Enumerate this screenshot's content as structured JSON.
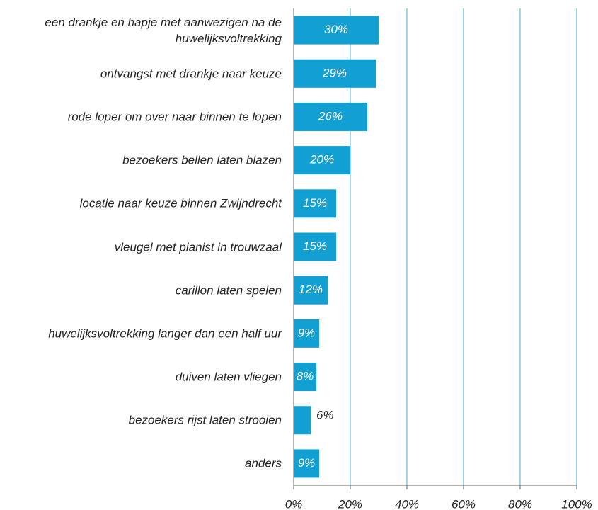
{
  "chart_data": {
    "type": "bar",
    "orientation": "horizontal",
    "categories": [
      "een drankje en hapje met aanwezigen na de huwelijksvoltrekking",
      "ontvangst met drankje naar keuze",
      "rode loper om over naar binnen te lopen",
      "bezoekers bellen laten blazen",
      "locatie naar keuze binnen Zwijndrecht",
      "vleugel met pianist in trouwzaal",
      "carillon laten spelen",
      "huwelijksvoltrekking langer dan een half uur",
      "duiven laten vliegen",
      "bezoekers rijst laten strooien",
      "anders"
    ],
    "values": [
      30,
      29,
      26,
      20,
      15,
      15,
      12,
      9,
      8,
      6,
      9
    ],
    "value_labels": [
      "30%",
      "29%",
      "26%",
      "20%",
      "15%",
      "15%",
      "12%",
      "9%",
      "8%",
      "6%",
      "9%"
    ],
    "color": "#129fd1",
    "xlim": [
      0,
      100
    ],
    "xticks": [
      {
        "value": 0,
        "label": "0%"
      },
      {
        "value": 20,
        "label": "20%"
      },
      {
        "value": 40,
        "label": "40%"
      },
      {
        "value": 60,
        "label": "60%"
      },
      {
        "value": 80,
        "label": "80%"
      },
      {
        "value": 100,
        "label": "100%"
      }
    ],
    "grid": true
  }
}
